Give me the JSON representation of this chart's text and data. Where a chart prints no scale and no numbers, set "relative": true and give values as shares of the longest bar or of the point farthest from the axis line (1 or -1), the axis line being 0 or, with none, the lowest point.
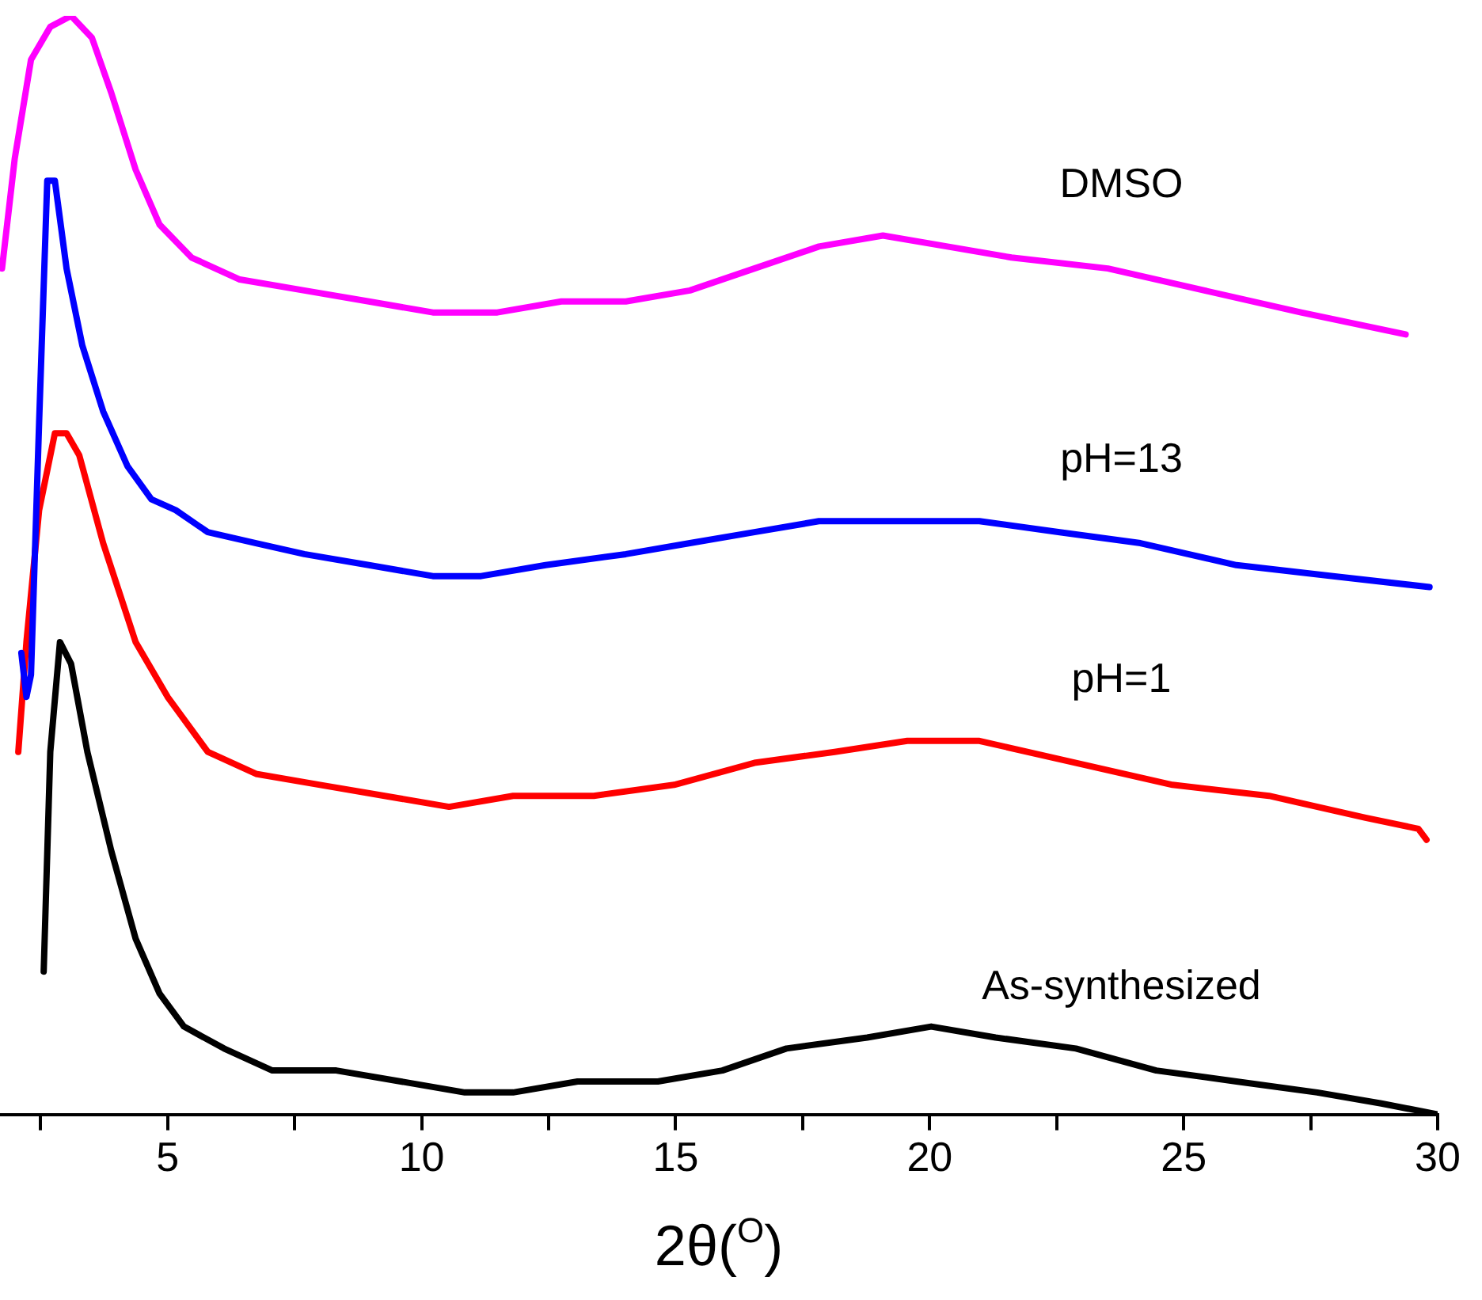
{
  "chart_data": {
    "type": "line",
    "relative": true,
    "xlabel": "2θ($^{O}$)",
    "xlim": [
      1.7,
      30
    ],
    "xticks": [
      {
        "value": 2.5,
        "label": null
      },
      5,
      {
        "value": 7.5,
        "label": null
      },
      10,
      {
        "value": 12.5,
        "label": null
      },
      15,
      {
        "value": 17.5,
        "label": null
      },
      20,
      {
        "value": 22.5,
        "label": null
      },
      25,
      {
        "value": 27.5,
        "label": null
      },
      30
    ],
    "grid": false,
    "legend": false,
    "marker": "none",
    "line_style": "solid",
    "series": [
      {
        "name": "DMSO",
        "color": "#ff00ff",
        "x": [
          1.74,
          1.99,
          2.31,
          2.69,
          3.1,
          3.51,
          3.89,
          4.37,
          4.84,
          5.47,
          6.42,
          7.69,
          8.96,
          10.22,
          11.49,
          12.75,
          14.02,
          15.28,
          16.55,
          17.82,
          19.08,
          20.35,
          21.61,
          23.51,
          25.41,
          27.31,
          29.37
        ],
        "values": [
          0.77,
          0.87,
          0.96,
          0.99,
          1,
          0.98,
          0.93,
          0.86,
          0.81,
          0.78,
          0.76,
          0.75,
          0.74,
          0.73,
          0.73,
          0.74,
          0.74,
          0.75,
          0.77,
          0.79,
          0.8,
          0.79,
          0.78,
          0.77,
          0.75,
          0.73,
          0.71
        ]
      },
      {
        "name": "pH=13",
        "color": "#0000ff",
        "x": [
          2.12,
          2.22,
          2.31,
          2.47,
          2.63,
          2.78,
          3.01,
          3.32,
          3.73,
          4.21,
          4.68,
          5.16,
          5.79,
          6.74,
          7.69,
          8.96,
          10.22,
          11.17,
          12.44,
          14.02,
          15.28,
          16.55,
          17.82,
          19.4,
          20.98,
          22.56,
          24.15,
          26.04,
          27.94,
          29.84
        ],
        "values": [
          0.42,
          0.38,
          0.4,
          0.63,
          0.85,
          0.85,
          0.77,
          0.7,
          0.64,
          0.59,
          0.56,
          0.55,
          0.53,
          0.52,
          0.51,
          0.5,
          0.49,
          0.49,
          0.5,
          0.51,
          0.52,
          0.53,
          0.54,
          0.54,
          0.54,
          0.53,
          0.52,
          0.5,
          0.49,
          0.48
        ]
      },
      {
        "name": "pH=1",
        "color": "#ff0000",
        "x": [
          2.06,
          2.22,
          2.47,
          2.78,
          3.01,
          3.26,
          3.73,
          4.37,
          5,
          5.79,
          6.74,
          8,
          9.27,
          10.54,
          11.8,
          13.39,
          14.97,
          16.55,
          18.13,
          19.56,
          20.98,
          22.88,
          24.78,
          26.68,
          28.58,
          29.62,
          29.78
        ],
        "values": [
          0.33,
          0.43,
          0.55,
          0.62,
          0.62,
          0.6,
          0.52,
          0.43,
          0.38,
          0.33,
          0.31,
          0.3,
          0.29,
          0.28,
          0.29,
          0.29,
          0.3,
          0.32,
          0.33,
          0.34,
          0.34,
          0.32,
          0.3,
          0.29,
          0.27,
          0.26,
          0.25
        ]
      },
      {
        "name": "As-synthesized",
        "color": "#000000",
        "x": [
          2.56,
          2.69,
          2.88,
          3.1,
          3.42,
          3.89,
          4.37,
          4.84,
          5.32,
          6.11,
          7.06,
          8.32,
          9.59,
          10.85,
          11.8,
          13.07,
          14.65,
          15.92,
          17.18,
          18.77,
          20.03,
          21.3,
          22.88,
          24.46,
          26.04,
          27.63,
          28.89,
          30
        ],
        "values": [
          0.13,
          0.33,
          0.43,
          0.41,
          0.33,
          0.24,
          0.16,
          0.11,
          0.08,
          0.06,
          0.04,
          0.04,
          0.03,
          0.02,
          0.02,
          0.03,
          0.03,
          0.04,
          0.06,
          0.07,
          0.08,
          0.07,
          0.06,
          0.04,
          0.03,
          0.02,
          0.01,
          0
        ]
      }
    ]
  }
}
